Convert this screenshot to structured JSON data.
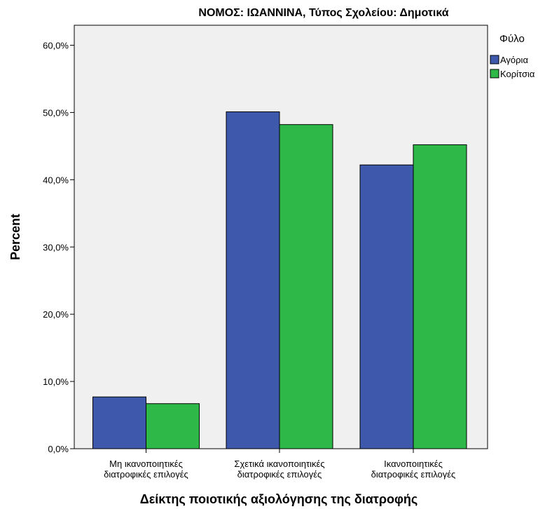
{
  "chart_data": {
    "type": "bar",
    "title": "ΝΟΜΟΣ: ΙΩΑΝΝΙΝΑ, Τύπος Σχολείου: Δημοτικά",
    "xlabel": "Δείκτης ποιοτικής αξιολόγησης της διατροφής",
    "ylabel": "Percent",
    "ylim": [
      0,
      65
    ],
    "yticks": [
      0,
      10,
      20,
      30,
      40,
      50,
      60
    ],
    "ytick_labels": [
      "0,0%",
      "10,0%",
      "20,0%",
      "30,0%",
      "40,0%",
      "50,0%",
      "60,0%"
    ],
    "categories": [
      [
        "Μη ικανοποιητικές",
        "διατροφικές επιλογές"
      ],
      [
        "Σχετικά ικανοποιητικές",
        "διατροφικές επιλογές"
      ],
      [
        "Ικανοποιητικές",
        "διατροφικές επιλογές"
      ]
    ],
    "legend": {
      "title": "Φύλο",
      "placement": "right"
    },
    "plot_background": "#f0f0f0",
    "series": [
      {
        "name": "Αγόρια",
        "color": "#3e58ac",
        "values": [
          7.7,
          50.1,
          42.2
        ]
      },
      {
        "name": "Κορίτσια",
        "color": "#2eb848",
        "values": [
          6.7,
          48.2,
          45.2
        ]
      }
    ]
  }
}
